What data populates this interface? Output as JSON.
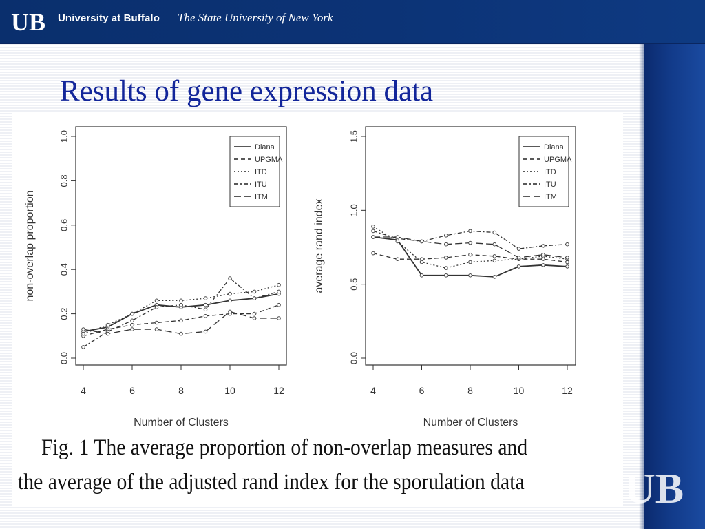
{
  "header": {
    "logo_text": "UB",
    "title": "University at Buffalo",
    "subtitle": "The State University of New York"
  },
  "slide": {
    "title": "Results of gene expression data",
    "caption_line1": "Fig. 1 The average proportion of non-overlap measures and",
    "caption_line2": "the average of the adjusted rand index for the sporulation data"
  },
  "watermark": {
    "logo_text": "UB"
  },
  "colors": {
    "brand_blue": "#0c3376",
    "title_blue": "#13269a"
  },
  "chart_data": [
    {
      "type": "line",
      "title": "",
      "xlabel": "Number of Clusters",
      "ylabel": "non-overlap proportion",
      "xlim": [
        4,
        12
      ],
      "ylim": [
        0.0,
        1.0
      ],
      "xticks": [
        "4",
        "6",
        "8",
        "10",
        "12"
      ],
      "yticks": [
        "0.0",
        "0.2",
        "0.4",
        "0.6",
        "0.8",
        "1.0"
      ],
      "legend": "top-right",
      "x": [
        4,
        5,
        6,
        7,
        8,
        9,
        10,
        11,
        12
      ],
      "series": [
        {
          "name": "Diana",
          "dash": "",
          "values": [
            0.12,
            0.14,
            0.2,
            0.24,
            0.23,
            0.24,
            0.26,
            0.27,
            0.29
          ]
        },
        {
          "name": "UPGMA",
          "dash": "6,4",
          "values": [
            0.1,
            0.13,
            0.15,
            0.16,
            0.17,
            0.19,
            0.2,
            0.2,
            0.24
          ]
        },
        {
          "name": "ITD",
          "dash": "2,3",
          "values": [
            0.11,
            0.15,
            0.2,
            0.26,
            0.26,
            0.27,
            0.29,
            0.3,
            0.33
          ]
        },
        {
          "name": "ITU",
          "dash": "6,3,2,3",
          "values": [
            0.05,
            0.12,
            0.17,
            0.23,
            0.24,
            0.22,
            0.36,
            0.27,
            0.3
          ]
        },
        {
          "name": "ITM",
          "dash": "10,5",
          "values": [
            0.13,
            0.11,
            0.13,
            0.13,
            0.11,
            0.12,
            0.21,
            0.18,
            0.18
          ]
        }
      ]
    },
    {
      "type": "line",
      "title": "",
      "xlabel": "Number of Clusters",
      "ylabel": "average rand index",
      "xlim": [
        4,
        12
      ],
      "ylim": [
        0.0,
        1.5
      ],
      "xticks": [
        "4",
        "6",
        "8",
        "10",
        "12"
      ],
      "yticks": [
        "0.0",
        "0.5",
        "1.0",
        "1.5"
      ],
      "legend": "top-right",
      "x": [
        4,
        5,
        6,
        7,
        8,
        9,
        10,
        11,
        12
      ],
      "series": [
        {
          "name": "Diana",
          "dash": "",
          "values": [
            0.82,
            0.8,
            0.56,
            0.56,
            0.56,
            0.55,
            0.62,
            0.63,
            0.62
          ]
        },
        {
          "name": "UPGMA",
          "dash": "6,4",
          "values": [
            0.71,
            0.67,
            0.67,
            0.68,
            0.7,
            0.69,
            0.67,
            0.67,
            0.65
          ]
        },
        {
          "name": "ITD",
          "dash": "2,3",
          "values": [
            0.89,
            0.79,
            0.65,
            0.61,
            0.65,
            0.66,
            0.67,
            0.69,
            0.67
          ]
        },
        {
          "name": "ITU",
          "dash": "6,3,2,3",
          "values": [
            0.86,
            0.81,
            0.79,
            0.83,
            0.86,
            0.85,
            0.74,
            0.76,
            0.77
          ]
        },
        {
          "name": "ITM",
          "dash": "10,5",
          "values": [
            0.82,
            0.82,
            0.79,
            0.77,
            0.78,
            0.77,
            0.68,
            0.7,
            0.68
          ]
        }
      ]
    }
  ]
}
